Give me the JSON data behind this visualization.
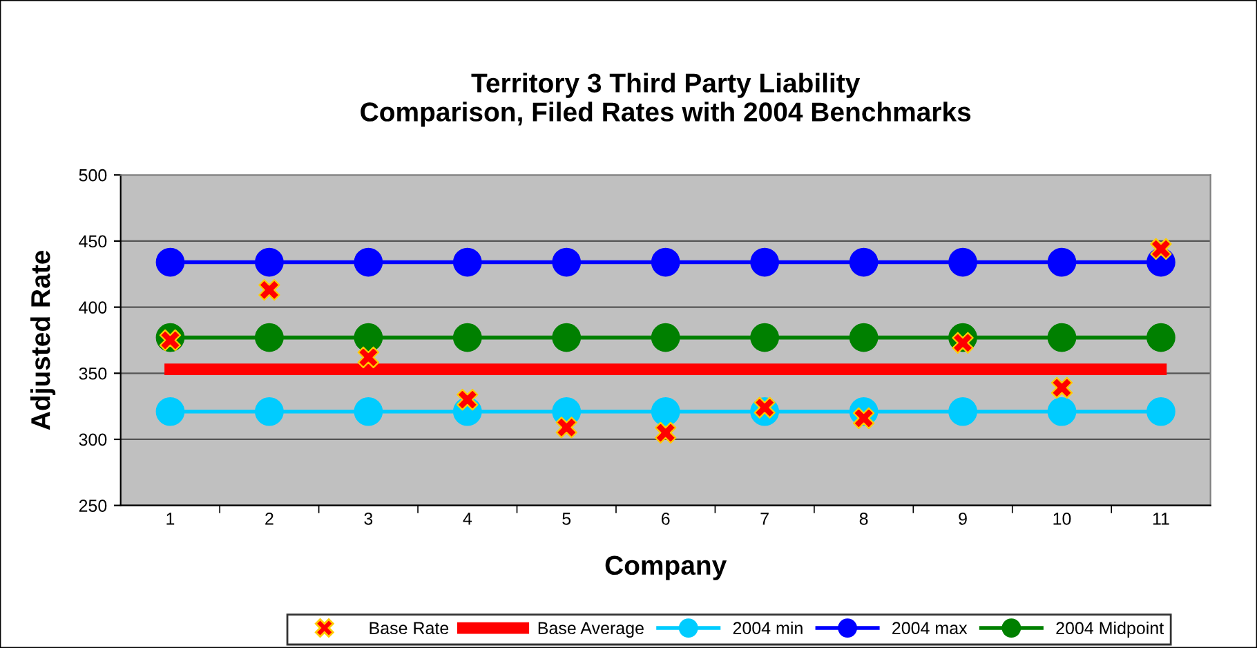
{
  "chart_data": {
    "type": "line",
    "title": "Territory 3 Third Party Liability\nComparison, Filed Rates with 2004 Benchmarks",
    "xlabel": "Company",
    "ylabel": "Adjusted Rate",
    "categories": [
      "1",
      "2",
      "3",
      "4",
      "5",
      "6",
      "7",
      "8",
      "9",
      "10",
      "11"
    ],
    "series": [
      {
        "name": "Base Rate",
        "type": "scatter",
        "marker": "cross",
        "color": "#ff0000",
        "values": [
          375,
          413,
          362,
          330,
          309,
          305,
          324,
          316,
          373,
          339,
          444
        ]
      },
      {
        "name": "Base Average",
        "marker": "none",
        "color": "#ff0000",
        "values": [
          353,
          353,
          353,
          353,
          353,
          353,
          353,
          353,
          353,
          353,
          353
        ]
      },
      {
        "name": "2004 min",
        "marker": "circle",
        "color": "#00ccff",
        "values": [
          321,
          321,
          321,
          321,
          321,
          321,
          321,
          321,
          321,
          321,
          321
        ]
      },
      {
        "name": "2004 max",
        "marker": "circle",
        "color": "#0000ff",
        "values": [
          434,
          434,
          434,
          434,
          434,
          434,
          434,
          434,
          434,
          434,
          434
        ]
      },
      {
        "name": "2004 Midpoint",
        "marker": "circle",
        "color": "#008000",
        "values": [
          377,
          377,
          377,
          377,
          377,
          377,
          377,
          377,
          377,
          377,
          377
        ]
      }
    ],
    "ylim": [
      250,
      500
    ],
    "yticks": [
      250,
      300,
      350,
      400,
      450,
      500
    ],
    "grid": "y",
    "legend": "bottom"
  }
}
